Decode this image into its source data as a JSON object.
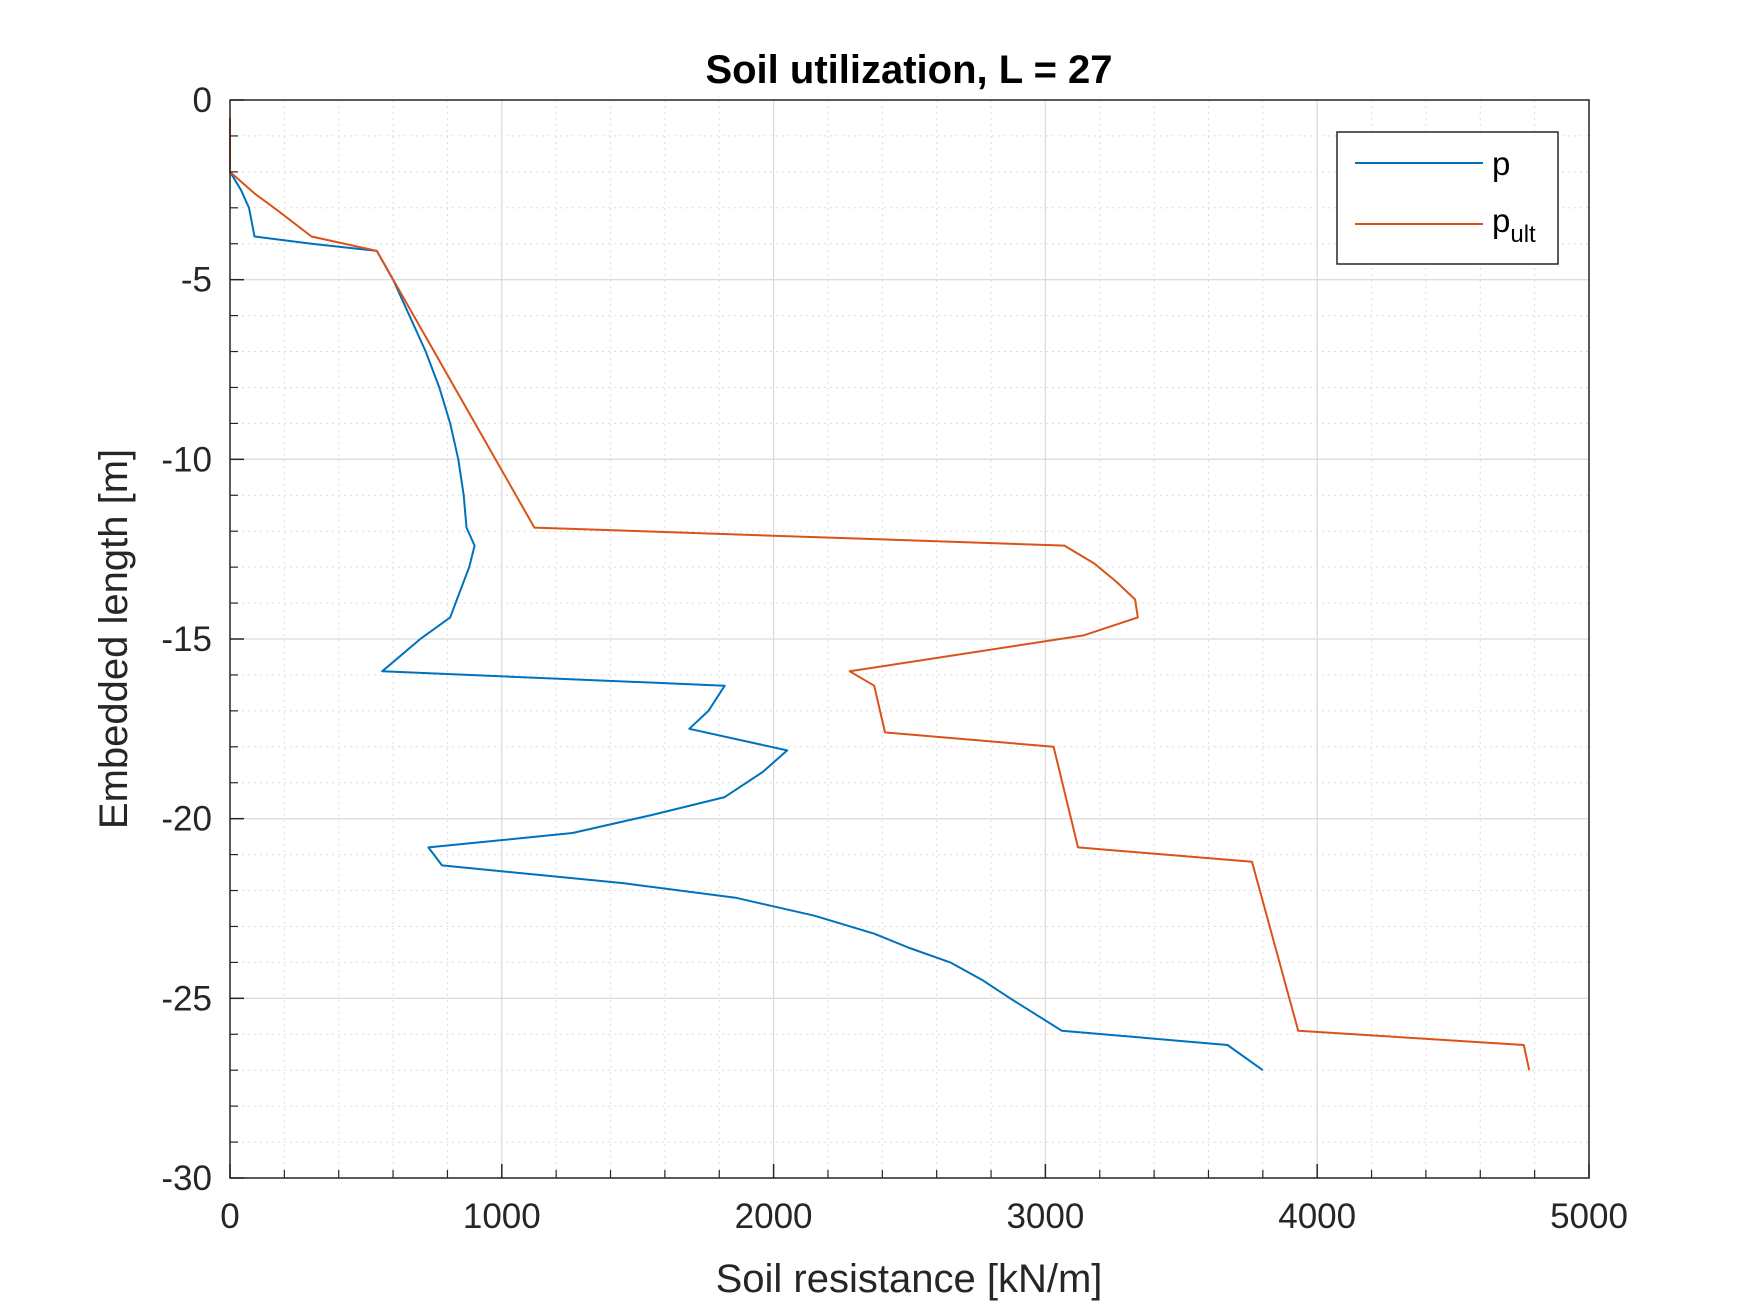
{
  "chart_data": {
    "type": "line",
    "title": "Soil utilization, L = 27",
    "xlabel": "Soil resistance [kN/m]",
    "ylabel": "Embedded length [m]",
    "xlim": [
      0,
      5000
    ],
    "ylim": [
      -30,
      0
    ],
    "x_ticks": [
      "0",
      "1000",
      "2000",
      "3000",
      "4000",
      "5000"
    ],
    "y_ticks": [
      "0",
      "-5",
      "-10",
      "-15",
      "-20",
      "-25",
      "-30"
    ],
    "grid": "major and minor",
    "legend_position": "top-right",
    "colors": {
      "p": "#0072BD",
      "p_ult": "#D95319",
      "grid": "#dcdcdc",
      "axes": "#262626"
    },
    "series": [
      {
        "name": "p",
        "legend_main": "p",
        "legend_sub": "",
        "color": "#0072BD",
        "points": [
          [
            0,
            -2.0
          ],
          [
            40,
            -2.5
          ],
          [
            70,
            -3.0
          ],
          [
            90,
            -3.8
          ],
          [
            300,
            -4.0
          ],
          [
            540,
            -4.2
          ],
          [
            600,
            -5.0
          ],
          [
            660,
            -6.0
          ],
          [
            720,
            -7.0
          ],
          [
            770,
            -8.0
          ],
          [
            810,
            -9.0
          ],
          [
            840,
            -10.0
          ],
          [
            860,
            -11.0
          ],
          [
            870,
            -11.9
          ],
          [
            900,
            -12.4
          ],
          [
            880,
            -13.0
          ],
          [
            850,
            -13.6
          ],
          [
            810,
            -14.4
          ],
          [
            700,
            -15.0
          ],
          [
            560,
            -15.9
          ],
          [
            1820,
            -16.3
          ],
          [
            1760,
            -17.0
          ],
          [
            1690,
            -17.5
          ],
          [
            2050,
            -18.1
          ],
          [
            1960,
            -18.7
          ],
          [
            1820,
            -19.4
          ],
          [
            1550,
            -19.9
          ],
          [
            1260,
            -20.4
          ],
          [
            730,
            -20.8
          ],
          [
            780,
            -21.3
          ],
          [
            1450,
            -21.8
          ],
          [
            1860,
            -22.2
          ],
          [
            2150,
            -22.7
          ],
          [
            2370,
            -23.2
          ],
          [
            2500,
            -23.6
          ],
          [
            2650,
            -24.0
          ],
          [
            2770,
            -24.5
          ],
          [
            2870,
            -25.0
          ],
          [
            3060,
            -25.9
          ],
          [
            3670,
            -26.3
          ],
          [
            3800,
            -27.0
          ]
        ]
      },
      {
        "name": "p_ult",
        "legend_main": "p",
        "legend_sub": "ult",
        "color": "#D95319",
        "points": [
          [
            0,
            -0.5
          ],
          [
            0,
            -2.0
          ],
          [
            90,
            -2.6
          ],
          [
            180,
            -3.1
          ],
          [
            300,
            -3.8
          ],
          [
            540,
            -4.2
          ],
          [
            1120,
            -11.9
          ],
          [
            3070,
            -12.4
          ],
          [
            3180,
            -12.9
          ],
          [
            3260,
            -13.4
          ],
          [
            3330,
            -13.9
          ],
          [
            3340,
            -14.4
          ],
          [
            3140,
            -14.9
          ],
          [
            2280,
            -15.9
          ],
          [
            2370,
            -16.3
          ],
          [
            2410,
            -17.6
          ],
          [
            3030,
            -18.0
          ],
          [
            3120,
            -20.8
          ],
          [
            3760,
            -21.2
          ],
          [
            3930,
            -25.9
          ],
          [
            4760,
            -26.3
          ],
          [
            4780,
            -27.0
          ]
        ]
      }
    ]
  }
}
